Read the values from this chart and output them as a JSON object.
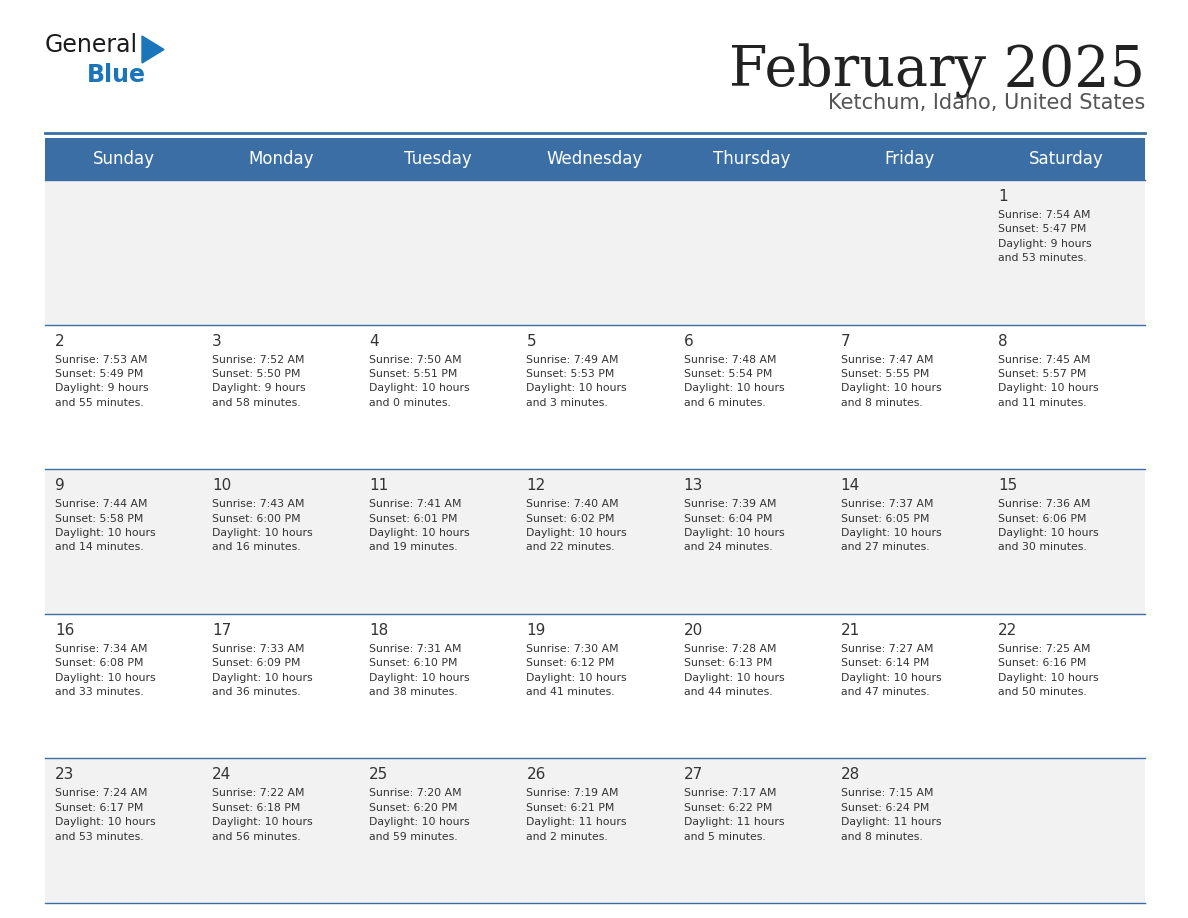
{
  "title": "February 2025",
  "subtitle": "Ketchum, Idaho, United States",
  "header_color": "#3a6ea5",
  "header_text_color": "#ffffff",
  "day_names": [
    "Sunday",
    "Monday",
    "Tuesday",
    "Wednesday",
    "Thursday",
    "Friday",
    "Saturday"
  ],
  "odd_row_color": "#f2f2f2",
  "even_row_color": "#ffffff",
  "border_color": "#3a6ea5",
  "text_color": "#333333",
  "title_color": "#222222",
  "subtitle_color": "#555555",
  "calendar_data": [
    [
      {
        "day": null,
        "info": null
      },
      {
        "day": null,
        "info": null
      },
      {
        "day": null,
        "info": null
      },
      {
        "day": null,
        "info": null
      },
      {
        "day": null,
        "info": null
      },
      {
        "day": null,
        "info": null
      },
      {
        "day": 1,
        "info": "Sunrise: 7:54 AM\nSunset: 5:47 PM\nDaylight: 9 hours\nand 53 minutes."
      }
    ],
    [
      {
        "day": 2,
        "info": "Sunrise: 7:53 AM\nSunset: 5:49 PM\nDaylight: 9 hours\nand 55 minutes."
      },
      {
        "day": 3,
        "info": "Sunrise: 7:52 AM\nSunset: 5:50 PM\nDaylight: 9 hours\nand 58 minutes."
      },
      {
        "day": 4,
        "info": "Sunrise: 7:50 AM\nSunset: 5:51 PM\nDaylight: 10 hours\nand 0 minutes."
      },
      {
        "day": 5,
        "info": "Sunrise: 7:49 AM\nSunset: 5:53 PM\nDaylight: 10 hours\nand 3 minutes."
      },
      {
        "day": 6,
        "info": "Sunrise: 7:48 AM\nSunset: 5:54 PM\nDaylight: 10 hours\nand 6 minutes."
      },
      {
        "day": 7,
        "info": "Sunrise: 7:47 AM\nSunset: 5:55 PM\nDaylight: 10 hours\nand 8 minutes."
      },
      {
        "day": 8,
        "info": "Sunrise: 7:45 AM\nSunset: 5:57 PM\nDaylight: 10 hours\nand 11 minutes."
      }
    ],
    [
      {
        "day": 9,
        "info": "Sunrise: 7:44 AM\nSunset: 5:58 PM\nDaylight: 10 hours\nand 14 minutes."
      },
      {
        "day": 10,
        "info": "Sunrise: 7:43 AM\nSunset: 6:00 PM\nDaylight: 10 hours\nand 16 minutes."
      },
      {
        "day": 11,
        "info": "Sunrise: 7:41 AM\nSunset: 6:01 PM\nDaylight: 10 hours\nand 19 minutes."
      },
      {
        "day": 12,
        "info": "Sunrise: 7:40 AM\nSunset: 6:02 PM\nDaylight: 10 hours\nand 22 minutes."
      },
      {
        "day": 13,
        "info": "Sunrise: 7:39 AM\nSunset: 6:04 PM\nDaylight: 10 hours\nand 24 minutes."
      },
      {
        "day": 14,
        "info": "Sunrise: 7:37 AM\nSunset: 6:05 PM\nDaylight: 10 hours\nand 27 minutes."
      },
      {
        "day": 15,
        "info": "Sunrise: 7:36 AM\nSunset: 6:06 PM\nDaylight: 10 hours\nand 30 minutes."
      }
    ],
    [
      {
        "day": 16,
        "info": "Sunrise: 7:34 AM\nSunset: 6:08 PM\nDaylight: 10 hours\nand 33 minutes."
      },
      {
        "day": 17,
        "info": "Sunrise: 7:33 AM\nSunset: 6:09 PM\nDaylight: 10 hours\nand 36 minutes."
      },
      {
        "day": 18,
        "info": "Sunrise: 7:31 AM\nSunset: 6:10 PM\nDaylight: 10 hours\nand 38 minutes."
      },
      {
        "day": 19,
        "info": "Sunrise: 7:30 AM\nSunset: 6:12 PM\nDaylight: 10 hours\nand 41 minutes."
      },
      {
        "day": 20,
        "info": "Sunrise: 7:28 AM\nSunset: 6:13 PM\nDaylight: 10 hours\nand 44 minutes."
      },
      {
        "day": 21,
        "info": "Sunrise: 7:27 AM\nSunset: 6:14 PM\nDaylight: 10 hours\nand 47 minutes."
      },
      {
        "day": 22,
        "info": "Sunrise: 7:25 AM\nSunset: 6:16 PM\nDaylight: 10 hours\nand 50 minutes."
      }
    ],
    [
      {
        "day": 23,
        "info": "Sunrise: 7:24 AM\nSunset: 6:17 PM\nDaylight: 10 hours\nand 53 minutes."
      },
      {
        "day": 24,
        "info": "Sunrise: 7:22 AM\nSunset: 6:18 PM\nDaylight: 10 hours\nand 56 minutes."
      },
      {
        "day": 25,
        "info": "Sunrise: 7:20 AM\nSunset: 6:20 PM\nDaylight: 10 hours\nand 59 minutes."
      },
      {
        "day": 26,
        "info": "Sunrise: 7:19 AM\nSunset: 6:21 PM\nDaylight: 11 hours\nand 2 minutes."
      },
      {
        "day": 27,
        "info": "Sunrise: 7:17 AM\nSunset: 6:22 PM\nDaylight: 11 hours\nand 5 minutes."
      },
      {
        "day": 28,
        "info": "Sunrise: 7:15 AM\nSunset: 6:24 PM\nDaylight: 11 hours\nand 8 minutes."
      },
      {
        "day": null,
        "info": null
      }
    ]
  ],
  "logo_text_general": "General",
  "logo_text_blue": "Blue",
  "logo_color_general": "#1a1a1a",
  "logo_color_blue": "#1a75bb",
  "logo_triangle_color": "#1a75bb",
  "figsize": [
    11.88,
    9.18
  ],
  "dpi": 100
}
